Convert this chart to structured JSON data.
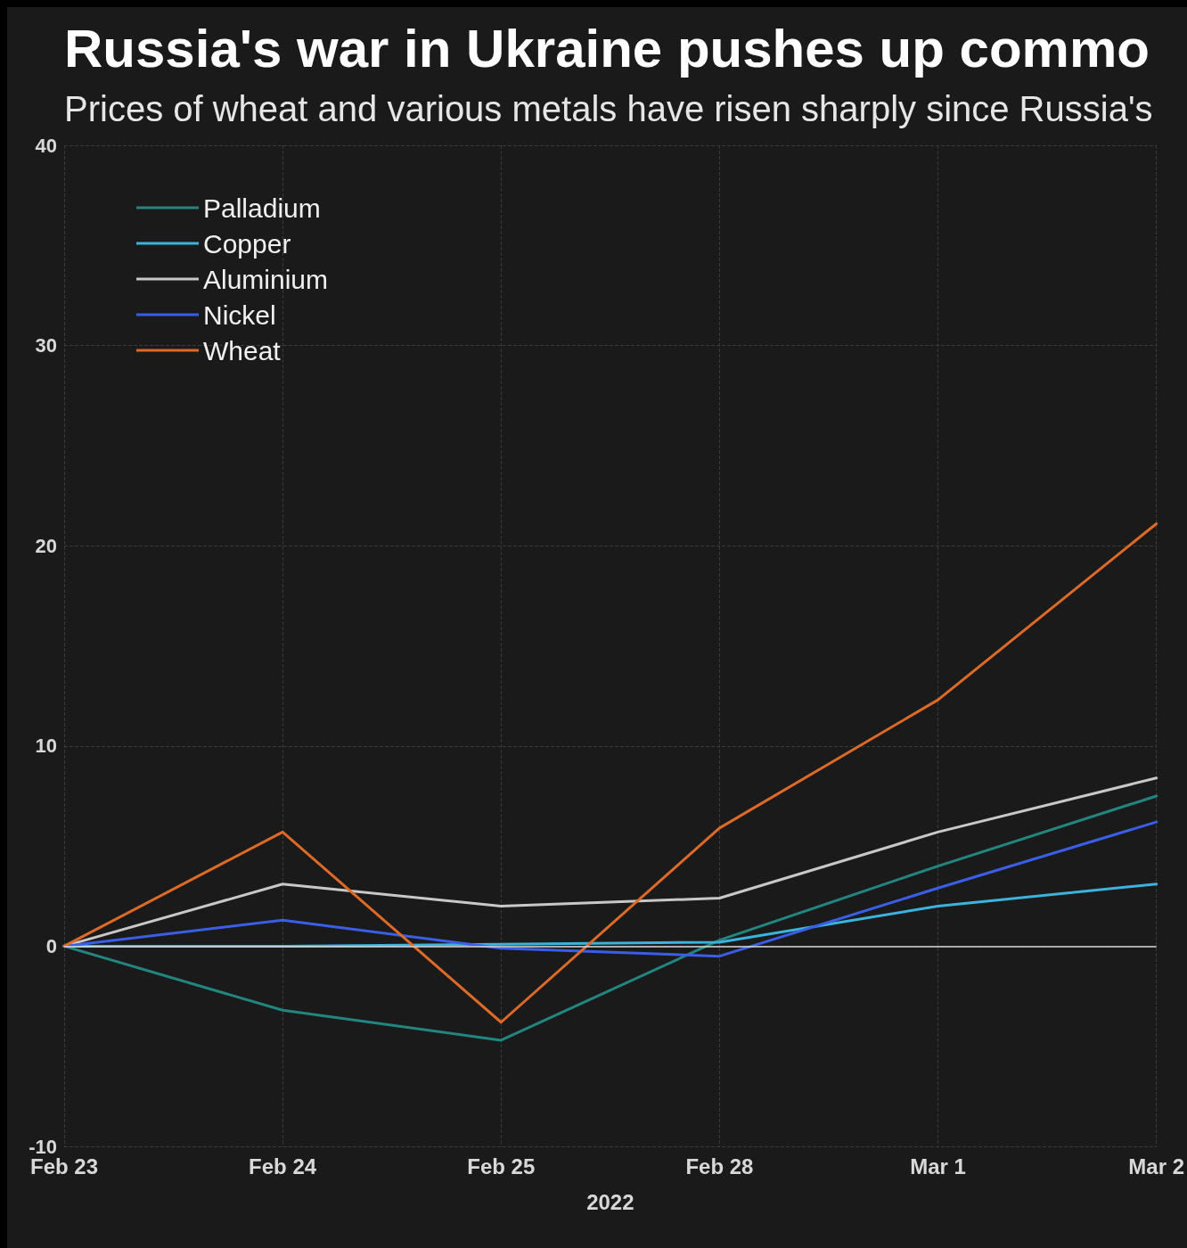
{
  "chart_data": {
    "type": "line",
    "title": "Russia's war in Ukraine pushes up commo",
    "subtitle": "Prices of wheat and various metals have risen sharply since Russia's",
    "xlabel": "2022",
    "categories": [
      "Feb 23",
      "Feb 24",
      "Feb 25",
      "Feb 28",
      "Mar 1",
      "Mar 2"
    ],
    "series": [
      {
        "name": "Palladium",
        "color": "#23857f",
        "values": [
          0,
          -3.2,
          -4.7,
          0.3,
          4.0,
          7.5
        ]
      },
      {
        "name": "Copper",
        "color": "#3ab4dc",
        "values": [
          0,
          0,
          0.1,
          0.2,
          2.0,
          3.1
        ]
      },
      {
        "name": "Aluminium",
        "color": "#c8c8c8",
        "values": [
          0,
          3.1,
          2.0,
          2.4,
          5.7,
          8.4
        ]
      },
      {
        "name": "Nickel",
        "color": "#3a5ee8",
        "values": [
          0,
          1.3,
          -0.1,
          -0.5,
          2.9,
          6.2
        ]
      },
      {
        "name": "Wheat",
        "color": "#dd6a26",
        "values": [
          0,
          5.7,
          -3.8,
          5.9,
          12.3,
          21.1
        ]
      }
    ],
    "ylim": [
      -10,
      40
    ],
    "yticks": [
      -10,
      0,
      10,
      20,
      30,
      40
    ],
    "ref_lines": [
      {
        "axis": "y",
        "value": 0,
        "color": "#d8d8d8"
      }
    ],
    "grid": true,
    "legend": "top left",
    "marker": "none",
    "line_style": "solid"
  }
}
